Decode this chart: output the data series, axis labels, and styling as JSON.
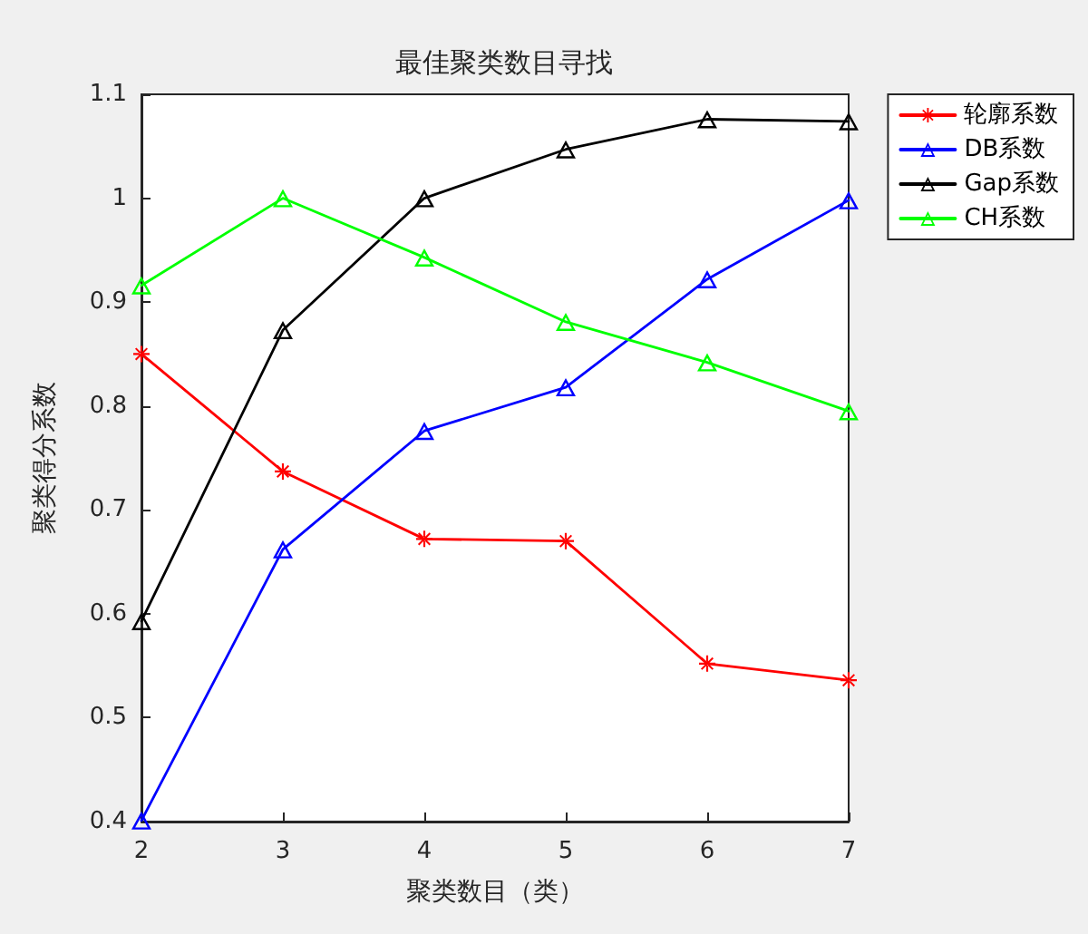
{
  "chart_data": {
    "type": "line",
    "title": "最佳聚类数目寻找",
    "xlabel": "聚类数目（类）",
    "ylabel": "聚类得分系数",
    "x": [
      2,
      3,
      4,
      5,
      6,
      7
    ],
    "xlim": [
      2,
      7
    ],
    "xticks": [
      2,
      3,
      4,
      5,
      6,
      7
    ],
    "ylim": [
      0.4,
      1.1
    ],
    "yticks": [
      0.4,
      0.5,
      0.6,
      0.7,
      0.8,
      0.9,
      1,
      1.1
    ],
    "grid": false,
    "legend": "top right",
    "line_style": "solid",
    "series": [
      {
        "name": "轮廓系数",
        "color": "#ff0000",
        "marker": "star",
        "values": [
          0.85,
          0.737,
          0.672,
          0.67,
          0.552,
          0.536
        ]
      },
      {
        "name": "DB系数",
        "color": "#0000ff",
        "marker": "triangle",
        "values": [
          0.401,
          0.662,
          0.776,
          0.818,
          0.922,
          0.998
        ]
      },
      {
        "name": "Gap系数",
        "color": "#000000",
        "marker": "triangle",
        "values": [
          0.593,
          0.873,
          1.0,
          1.047,
          1.076,
          1.074
        ]
      },
      {
        "name": "CH系数",
        "color": "#00ff00",
        "marker": "triangle",
        "values": [
          0.916,
          1.0,
          0.943,
          0.881,
          0.842,
          0.795
        ]
      }
    ]
  }
}
